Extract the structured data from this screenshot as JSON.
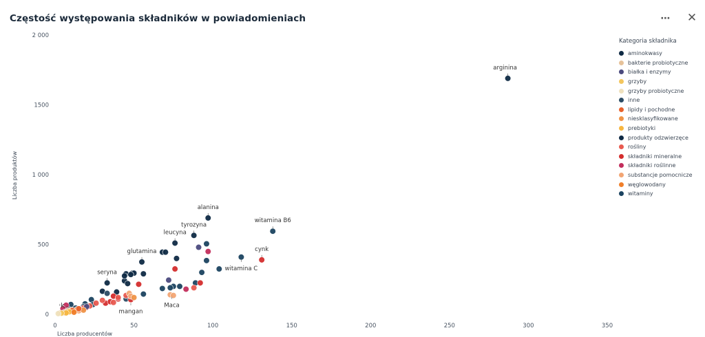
{
  "title": "Częstość występowania składników w powiadomieniach",
  "toolbar": {
    "more_icon": "⋯",
    "close_icon": "✕"
  },
  "colors": {
    "aminokwasy": "#0f2a44",
    "bakterie probiotyczne": "#e6c29a",
    "białka i enzymy": "#4b4a7e",
    "grzyby": "#f3c65d",
    "grzyby probiotyczne": "#efe1be",
    "inne": "#2b4b64",
    "lipidy i pochodne": "#e8612c",
    "niesklasyfikowane": "#ef9448",
    "prebiotyki": "#f7b640",
    "produkty odzwierzęce": "#0f2a44",
    "rośliny": "#e85a50",
    "składniki mineralne": "#d42d2d",
    "składniki roślinne": "#c22e5c",
    "substancje pomocnicze": "#f2a574",
    "węglowodany": "#f07f2a",
    "witaminy": "#1b4360"
  },
  "chart_data": {
    "type": "scatter",
    "title": "Częstość występowania składników w powiadomieniach",
    "xlabel": "Liczba producentów",
    "ylabel": "Liczba produktów",
    "xlim": [
      0,
      350
    ],
    "ylim": [
      0,
      2000
    ],
    "x_ticks": [
      "0",
      "50",
      "100",
      "150",
      "200",
      "250",
      "300",
      "350"
    ],
    "y_ticks": [
      "0",
      "500",
      "1 000",
      "1500",
      "2 000"
    ],
    "grid": false,
    "legend_position": "right",
    "legend_title": "Kategoria składnika",
    "legend": [
      "aminokwasy",
      "bakterie probiotyczne",
      "białka i enzymy",
      "grzyby",
      "grzyby probiotyczne",
      "inne",
      "lipidy i pochodne",
      "niesklasyfikowane",
      "prebiotyki",
      "produkty odzwierzęce",
      "rośliny",
      "składniki mineralne",
      "składniki roślinne",
      "substancje pomocnicze",
      "węglowodany",
      "witaminy"
    ],
    "annotations": [
      {
        "label": "arginina",
        "x": 287,
        "y": 1690
      },
      {
        "label": "alanina",
        "x": 97,
        "y": 690
      },
      {
        "label": "witamina B6",
        "x": 138,
        "y": 595
      },
      {
        "label": "tyrozyna",
        "x": 88,
        "y": 565
      },
      {
        "label": "leucyna",
        "x": 76,
        "y": 510
      },
      {
        "label": "cynk",
        "x": 131,
        "y": 390
      },
      {
        "label": "glutamina",
        "x": 55,
        "y": 375
      },
      {
        "label": "witamina C",
        "x": 118,
        "y": 410
      },
      {
        "label": "seryna",
        "x": 33,
        "y": 225
      },
      {
        "label": "Maca",
        "x": 74,
        "y": 145
      },
      {
        "label": "mangan",
        "x": 48,
        "y": 100
      },
      {
        "label": "k...",
        "x": 3,
        "y": 40
      }
    ],
    "series": [
      {
        "name": "aminokwasy",
        "points": [
          [
            287,
            1690
          ],
          [
            97,
            690
          ],
          [
            88,
            565
          ],
          [
            76,
            510
          ],
          [
            55,
            375
          ],
          [
            33,
            225
          ],
          [
            77,
            400
          ],
          [
            68,
            445
          ],
          [
            70,
            445
          ],
          [
            45,
            290
          ],
          [
            49,
            295
          ],
          [
            50,
            295
          ],
          [
            56,
            290
          ],
          [
            44,
            240
          ],
          [
            46,
            220
          ],
          [
            30,
            165
          ],
          [
            39,
            160
          ],
          [
            44,
            275
          ],
          [
            48,
            285
          ]
        ]
      },
      {
        "name": "witaminy",
        "points": [
          [
            138,
            595
          ],
          [
            118,
            410
          ],
          [
            104,
            325
          ],
          [
            96,
            385
          ],
          [
            96,
            505
          ],
          [
            93,
            300
          ],
          [
            89,
            225
          ],
          [
            75,
            200
          ],
          [
            73,
            190
          ],
          [
            68,
            185
          ],
          [
            56,
            145
          ],
          [
            79,
            200
          ],
          [
            23,
            105
          ],
          [
            19,
            75
          ],
          [
            10,
            70
          ]
        ]
      },
      {
        "name": "inne",
        "points": [
          [
            24,
            70
          ],
          [
            18,
            55
          ],
          [
            13,
            45
          ],
          [
            8,
            40
          ],
          [
            45,
            110
          ],
          [
            33,
            150
          ]
        ]
      },
      {
        "name": "składniki mineralne",
        "points": [
          [
            131,
            390
          ],
          [
            92,
            225
          ],
          [
            76,
            325
          ],
          [
            53,
            215
          ],
          [
            48,
            105
          ],
          [
            37,
            130
          ],
          [
            32,
            80
          ],
          [
            40,
            110
          ],
          [
            35,
            90
          ],
          [
            20,
            50
          ]
        ]
      },
      {
        "name": "rośliny",
        "points": [
          [
            88,
            190
          ],
          [
            30,
            100
          ],
          [
            26,
            80
          ],
          [
            22,
            60
          ],
          [
            18,
            45
          ],
          [
            16,
            35
          ],
          [
            14,
            30
          ],
          [
            12,
            25
          ],
          [
            10,
            20
          ],
          [
            8,
            15
          ],
          [
            6,
            10
          ],
          [
            40,
            120
          ],
          [
            37,
            85
          ],
          [
            45,
            135
          ]
        ]
      },
      {
        "name": "składniki roślinne",
        "points": [
          [
            97,
            450
          ],
          [
            83,
            180
          ],
          [
            7,
            65
          ],
          [
            5,
            40
          ]
        ]
      },
      {
        "name": "białka i enzymy",
        "points": [
          [
            91,
            480
          ],
          [
            72,
            245
          ],
          [
            20,
            55
          ]
        ]
      },
      {
        "name": "substancje pomocnicze",
        "points": [
          [
            73,
            140
          ],
          [
            75,
            135
          ],
          [
            47,
            150
          ],
          [
            48,
            130
          ],
          [
            12,
            20
          ],
          [
            10,
            30
          ],
          [
            15,
            25
          ]
        ]
      },
      {
        "name": "niesklasyfikowane",
        "points": [
          [
            50,
            120
          ],
          [
            14,
            35
          ],
          [
            18,
            30
          ],
          [
            9,
            20
          ]
        ]
      },
      {
        "name": "bakterie probiotyczne",
        "points": [
          [
            6,
            15
          ],
          [
            8,
            25
          ],
          [
            3,
            10
          ]
        ]
      },
      {
        "name": "lipidy i pochodne",
        "points": [
          [
            15,
            40
          ],
          [
            11,
            28
          ]
        ]
      },
      {
        "name": "prebiotyki",
        "points": [
          [
            9,
            18
          ],
          [
            7,
            10
          ]
        ]
      },
      {
        "name": "węglowodany",
        "points": [
          [
            12,
            15
          ]
        ]
      },
      {
        "name": "grzyby",
        "points": [
          [
            4,
            8
          ]
        ]
      },
      {
        "name": "grzyby probiotyczne",
        "points": [
          [
            2,
            5
          ]
        ]
      }
    ]
  }
}
